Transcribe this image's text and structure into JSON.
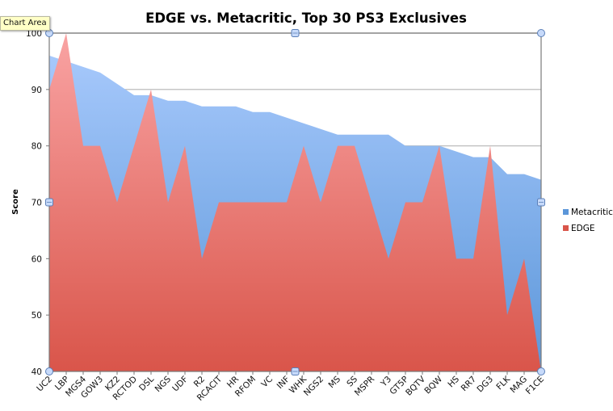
{
  "tooltip": {
    "text": "Chart Area"
  },
  "colors": {
    "metacritic_top": "#a6c8fb",
    "metacritic_bottom": "#5b96d9",
    "edge_top": "#f9a3a3",
    "edge_bottom": "#d9554a",
    "gridline": "#b4b4b4",
    "axis": "#7a7a7a",
    "handle_fill": "#c7dafa",
    "handle_stroke": "#5a7fb8"
  },
  "chart_data": {
    "type": "area",
    "title": "EDGE vs. Metacritic, Top 30 PS3 Exclusives",
    "xlabel": "",
    "ylabel": "Score",
    "ylim": [
      40,
      100
    ],
    "yticks": [
      40,
      50,
      60,
      70,
      80,
      90,
      100
    ],
    "grid": true,
    "legend_position": "right",
    "categories": [
      "UC2",
      "LBP",
      "MGS4",
      "GOW3",
      "KZ2",
      "RCTOD",
      "DSL",
      "NGS",
      "UDF",
      "R2",
      "RCACIT",
      "HR",
      "RFOM",
      "VC",
      "INF",
      "WHK",
      "NGS2",
      "MS",
      "SS",
      "MSPR",
      "Y3",
      "GT5P",
      "BQTV",
      "BQW",
      "HS",
      "RR7",
      "DG3",
      "FLK",
      "MAG",
      "F1CE"
    ],
    "series": [
      {
        "name": "Metacritic",
        "values": [
          96,
          95,
          94,
          93,
          91,
          89,
          89,
          88,
          88,
          87,
          87,
          87,
          86,
          86,
          85,
          84,
          83,
          82,
          82,
          82,
          82,
          80,
          80,
          80,
          79,
          78,
          78,
          75,
          75,
          74
        ]
      },
      {
        "name": "EDGE",
        "values": [
          90,
          100,
          80,
          80,
          70,
          80,
          90,
          70,
          80,
          60,
          70,
          70,
          70,
          70,
          70,
          80,
          70,
          80,
          80,
          70,
          60,
          70,
          70,
          80,
          60,
          60,
          80,
          50,
          60,
          40
        ]
      }
    ]
  }
}
